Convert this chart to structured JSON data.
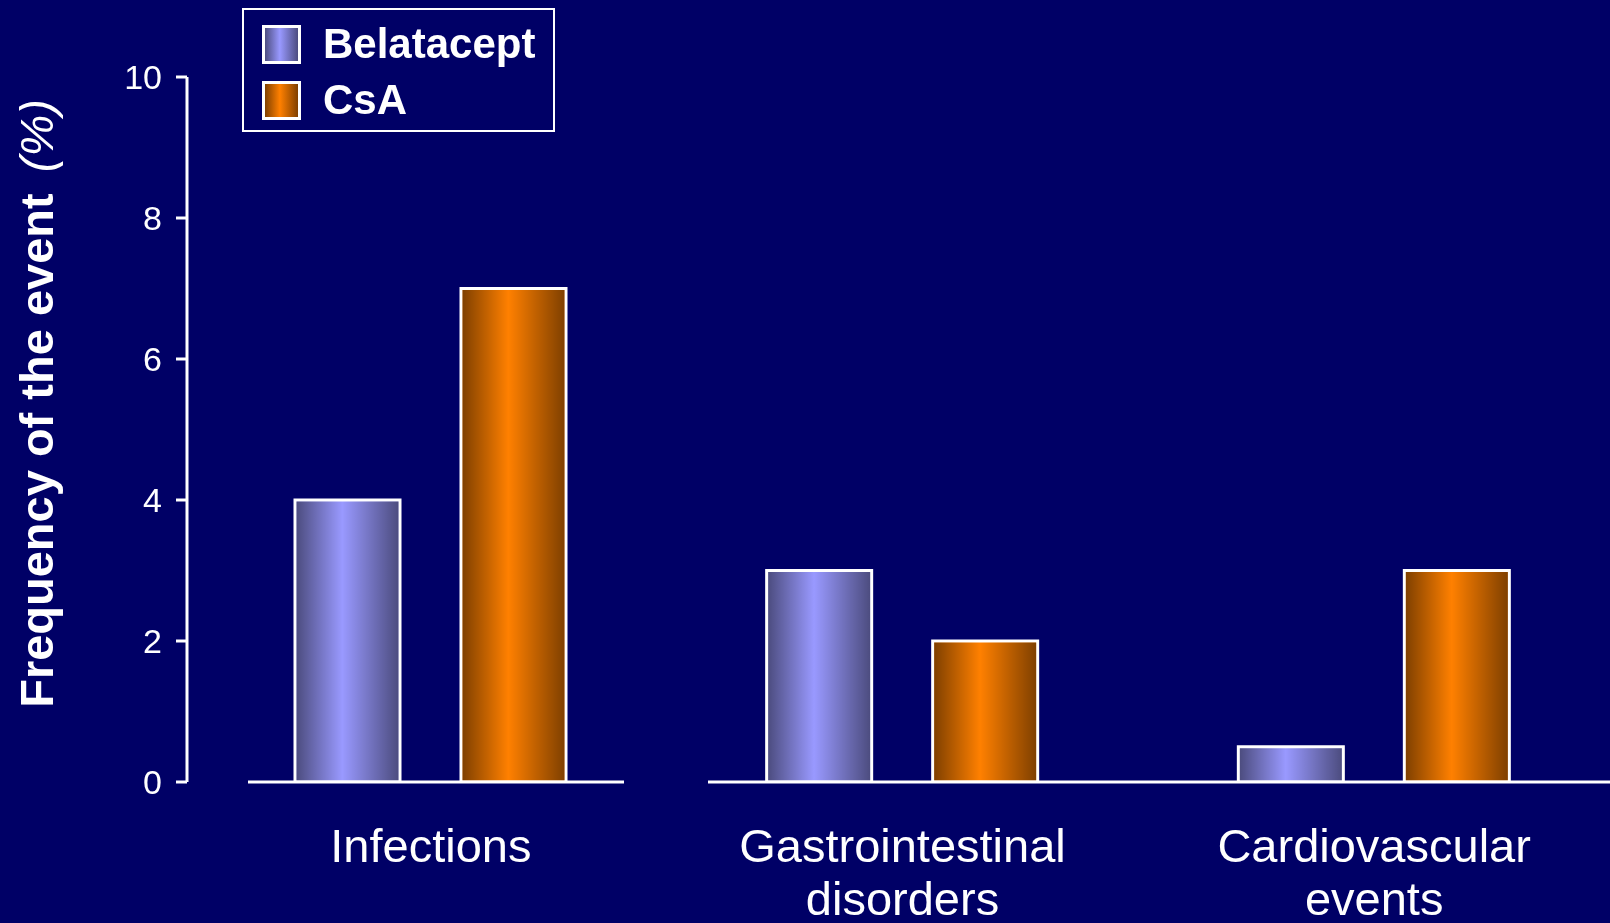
{
  "chart_data": {
    "type": "bar",
    "ylabel": "Frequency of the event (%)",
    "categories": [
      "Infections",
      "Gastrointestinal disorders",
      "Cardiovascular events"
    ],
    "series": [
      {
        "name": "Belatacept",
        "color": "#9999ff",
        "values": [
          4,
          3,
          0.5
        ]
      },
      {
        "name": "CsA",
        "color": "#ff8000",
        "values": [
          7,
          2,
          3
        ]
      }
    ],
    "ylim": [
      0,
      10
    ],
    "yticks": [
      0,
      2,
      4,
      6,
      8,
      10
    ],
    "legend": "top left"
  }
}
